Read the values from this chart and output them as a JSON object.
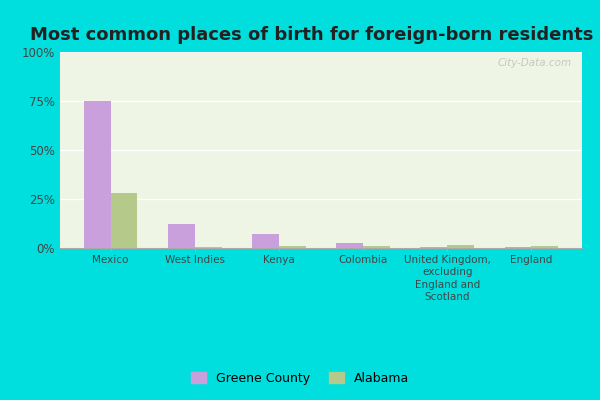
{
  "title": "Most common places of birth for foreign-born residents",
  "categories": [
    "Mexico",
    "West Indies",
    "Kenya",
    "Colombia",
    "United Kingdom,\nexcluding\nEngland and\nScotland",
    "England"
  ],
  "greene_county": [
    75,
    12,
    7,
    2.5,
    0.5,
    0.3
  ],
  "alabama": [
    28,
    0.5,
    1.0,
    1.0,
    1.5,
    1.0
  ],
  "greene_color": "#c9a0dc",
  "alabama_color": "#b5c98a",
  "bg_color": "#eef5e4",
  "outer_bg": "#00dede",
  "ylim": [
    0,
    100
  ],
  "yticks": [
    0,
    25,
    50,
    75,
    100
  ],
  "bar_width": 0.32,
  "title_fontsize": 13,
  "legend_labels": [
    "Greene County",
    "Alabama"
  ],
  "watermark": "City-Data.com"
}
